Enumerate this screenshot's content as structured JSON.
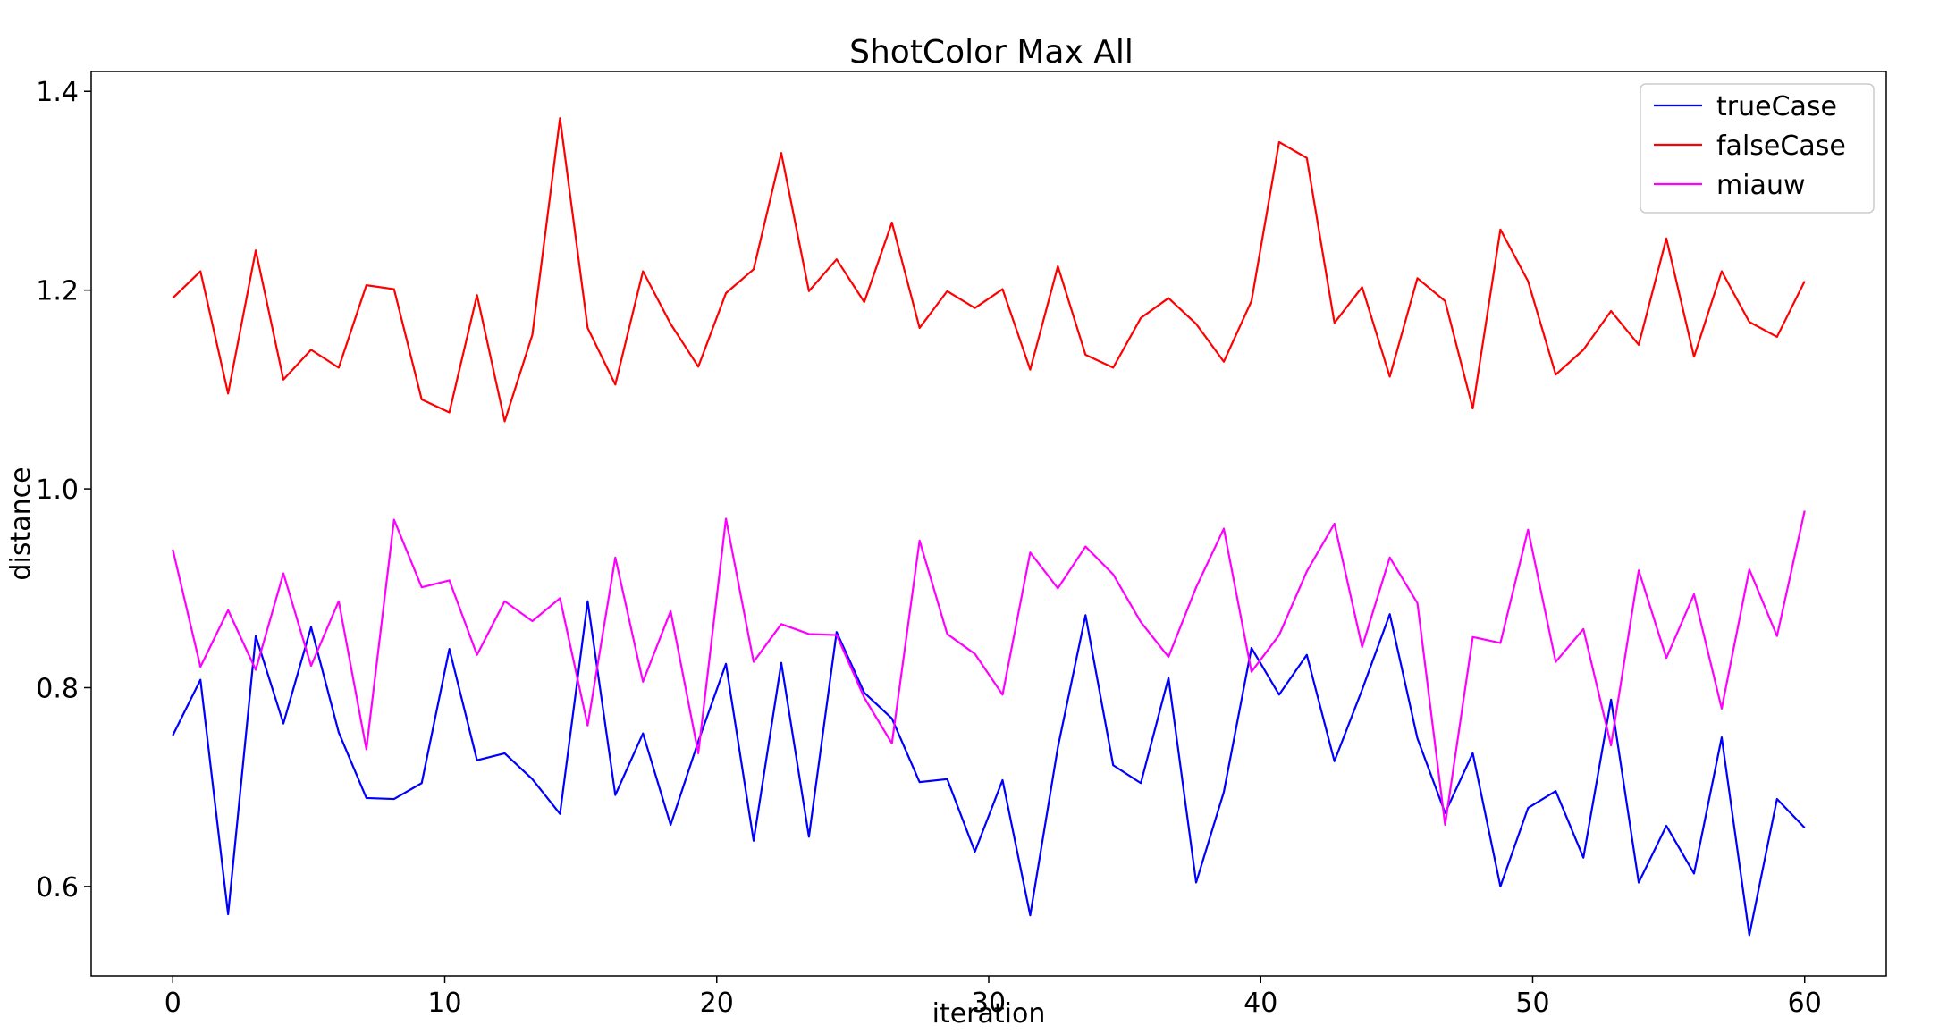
{
  "chart_data": {
    "type": "line",
    "title": "ShotColor Max All",
    "xlabel": "iteration",
    "ylabel": "distance",
    "xlim": [
      -3,
      63
    ],
    "ylim": [
      0.51,
      1.42
    ],
    "xticks": [
      0,
      10,
      20,
      30,
      40,
      50,
      60
    ],
    "yticks": [
      0.6,
      0.8,
      1.0,
      1.2,
      1.4
    ],
    "grid": false,
    "legend_position": "top-right",
    "series": [
      {
        "name": "trueCase",
        "color": "#0000ff",
        "values": [
          0.752,
          0.808,
          0.572,
          0.852,
          0.764,
          0.861,
          0.755,
          0.689,
          0.688,
          0.704,
          0.839,
          0.727,
          0.734,
          0.708,
          0.673,
          0.887,
          0.692,
          0.754,
          0.662,
          0.746,
          0.824,
          0.646,
          0.825,
          0.65,
          0.856,
          0.795,
          0.769,
          0.705,
          0.708,
          0.635,
          0.707,
          0.571,
          0.74,
          0.873,
          0.722,
          0.704,
          0.81,
          0.604,
          0.695,
          0.84,
          0.793,
          0.833,
          0.726,
          0.798,
          0.874,
          0.749,
          0.674,
          0.734,
          0.6,
          0.679,
          0.696,
          0.629,
          0.788,
          0.604,
          0.661,
          0.613,
          0.75,
          0.551,
          0.688,
          0.659
        ]
      },
      {
        "name": "falseCase",
        "color": "#ff0000",
        "values": [
          1.192,
          1.219,
          1.096,
          1.24,
          1.11,
          1.14,
          1.122,
          1.205,
          1.201,
          1.09,
          1.077,
          1.195,
          1.068,
          1.155,
          1.373,
          1.162,
          1.105,
          1.219,
          1.166,
          1.123,
          1.197,
          1.221,
          1.338,
          1.199,
          1.231,
          1.188,
          1.268,
          1.162,
          1.199,
          1.182,
          1.201,
          1.12,
          1.224,
          1.135,
          1.122,
          1.172,
          1.192,
          1.166,
          1.128,
          1.189,
          1.349,
          1.333,
          1.167,
          1.203,
          1.113,
          1.212,
          1.189,
          1.081,
          1.261,
          1.209,
          1.115,
          1.14,
          1.179,
          1.145,
          1.252,
          1.133,
          1.219,
          1.168,
          1.153,
          1.209
        ]
      },
      {
        "name": "miauw",
        "color": "#ff00ff",
        "values": [
          0.939,
          0.821,
          0.878,
          0.818,
          0.915,
          0.822,
          0.887,
          0.738,
          0.969,
          0.901,
          0.908,
          0.833,
          0.887,
          0.867,
          0.89,
          0.762,
          0.931,
          0.806,
          0.877,
          0.734,
          0.97,
          0.826,
          0.864,
          0.854,
          0.853,
          0.79,
          0.744,
          0.948,
          0.854,
          0.834,
          0.793,
          0.936,
          0.9,
          0.942,
          0.914,
          0.866,
          0.831,
          0.901,
          0.96,
          0.816,
          0.853,
          0.917,
          0.965,
          0.841,
          0.931,
          0.885,
          0.662,
          0.851,
          0.845,
          0.959,
          0.826,
          0.859,
          0.742,
          0.918,
          0.83,
          0.894,
          0.779,
          0.919,
          0.852,
          0.978
        ]
      }
    ]
  }
}
